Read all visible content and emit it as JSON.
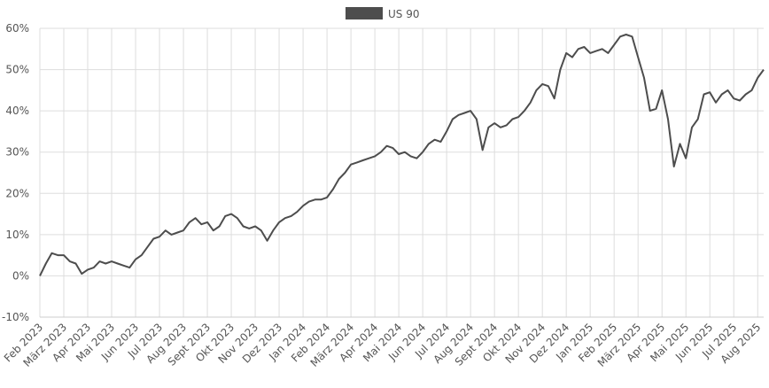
{
  "chart_data": {
    "type": "line",
    "categories": [
      "Feb 2023",
      null,
      null,
      null,
      "März 2023",
      null,
      null,
      null,
      "Apr 2023",
      null,
      null,
      null,
      "Mai 2023",
      null,
      null,
      null,
      "Jun 2023",
      null,
      null,
      null,
      "Jul 2023",
      null,
      null,
      null,
      "Aug 2023",
      null,
      null,
      null,
      "Sept 2023",
      null,
      null,
      null,
      "Okt 2023",
      null,
      null,
      null,
      "Nov 2023",
      null,
      null,
      null,
      "Dez 2023",
      null,
      null,
      null,
      "Jan 2024",
      null,
      null,
      null,
      "Feb 2024",
      null,
      null,
      null,
      "März 2024",
      null,
      null,
      null,
      "Apr 2024",
      null,
      null,
      null,
      "Mai 2024",
      null,
      null,
      null,
      "Jun 2024",
      null,
      null,
      null,
      "Jul 2024",
      null,
      null,
      null,
      "Aug 2024",
      null,
      null,
      null,
      "Sept 2024",
      null,
      null,
      null,
      "Okt 2024",
      null,
      null,
      null,
      "Nov 2024",
      null,
      null,
      null,
      "Dez 2024",
      null,
      null,
      null,
      "Jan 2025",
      null,
      null,
      null,
      "Feb 2025",
      null,
      null,
      null,
      "März 2025",
      null,
      null,
      null,
      "Apr 2025",
      null,
      null,
      null,
      "Mai 2025",
      null,
      null,
      null,
      "Jun 2025",
      null,
      null,
      null,
      "Jul 2025",
      null,
      null,
      null,
      "Aug 2025",
      null
    ],
    "series": [
      {
        "name": "US 90",
        "color": "#4d4d4d",
        "values": [
          0,
          3,
          5.5,
          5,
          5,
          3.5,
          3,
          0.5,
          1.5,
          2,
          3.5,
          3,
          3.5,
          3,
          2.5,
          2,
          4,
          5,
          7,
          9,
          9.5,
          11,
          10,
          10.5,
          11,
          13,
          14,
          12.5,
          13,
          11,
          12,
          14.5,
          15,
          14,
          12,
          11.5,
          12,
          11,
          8.5,
          11,
          13,
          14,
          14.5,
          15.5,
          17,
          18,
          18.5,
          18.5,
          19,
          21,
          23.5,
          25,
          27,
          27.5,
          28,
          28.5,
          29,
          30,
          31.5,
          31,
          29.5,
          30,
          29,
          28.5,
          30,
          32,
          33,
          32.5,
          35,
          38,
          39,
          39.5,
          40,
          38,
          30.5,
          36,
          37,
          36,
          36.5,
          38,
          38.5,
          40,
          42,
          45,
          46.5,
          46,
          43,
          50,
          54,
          53,
          55,
          55.5,
          54,
          54.5,
          55,
          54,
          56,
          58,
          58.5,
          58,
          53,
          48,
          40,
          40.5,
          45,
          38,
          26.5,
          32,
          28.5,
          36,
          38,
          44,
          44.5,
          42,
          44,
          45,
          43,
          42.5,
          44,
          45,
          48,
          50
        ]
      }
    ],
    "ylim": [
      -10,
      60
    ],
    "yticks": [
      {
        "value": -10,
        "label": "-10%"
      },
      {
        "value": 0,
        "label": "0%"
      },
      {
        "value": 10,
        "label": "10%"
      },
      {
        "value": 20,
        "label": "20%"
      },
      {
        "value": 30,
        "label": "30%"
      },
      {
        "value": 40,
        "label": "40%"
      },
      {
        "value": 50,
        "label": "50%"
      },
      {
        "value": 60,
        "label": "60%"
      }
    ],
    "grid": true
  }
}
